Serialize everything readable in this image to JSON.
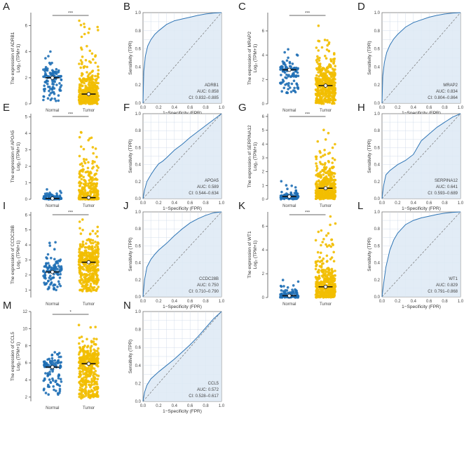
{
  "colors": {
    "normal": "#1f6fb5",
    "tumor": "#f2be00",
    "roc_line": "#2f75b5",
    "roc_fill": "#dde9f5",
    "grid": "#c9d6e6"
  },
  "axis_labels": {
    "group_normal": "Normal",
    "group_tumor": "Tumor",
    "roc_x": "1−Specificity (FPR)",
    "roc_y": "Sensitivity (TPR)"
  },
  "chart_data": [
    {
      "panel": "A",
      "type": "scatter",
      "title": "",
      "ylabel": "The expression of ADRB1",
      "ylabel_sub": "Log₂ (TPM+1)",
      "categories": [
        "Normal",
        "Tumor"
      ],
      "ylim": [
        0,
        7
      ],
      "yticks": [
        0,
        2,
        4,
        6
      ],
      "significance": "***",
      "medians": [
        2.0,
        0.75
      ],
      "ranges": [
        [
          0.2,
          4.5
        ],
        [
          0.0,
          6.9
        ]
      ],
      "n": [
        110,
        420
      ]
    },
    {
      "panel": "B",
      "type": "line",
      "title": "",
      "gene": "ADRB1",
      "auc": "AUC: 0.858",
      "ci": "CI: 0.832–0.885",
      "xlabel": "1−Specificity (FPR)",
      "ylabel": "Sensitivity (TPR)",
      "xlim": [
        0,
        1
      ],
      "ylim": [
        0,
        1
      ],
      "ticks": [
        0,
        0.2,
        0.4,
        0.6,
        0.8,
        1.0
      ],
      "x": [
        0,
        0.01,
        0.03,
        0.06,
        0.1,
        0.15,
        0.2,
        0.3,
        0.4,
        0.5,
        0.6,
        0.7,
        0.8,
        0.9,
        1.0
      ],
      "y": [
        0,
        0.35,
        0.52,
        0.63,
        0.7,
        0.76,
        0.8,
        0.87,
        0.91,
        0.93,
        0.95,
        0.97,
        0.985,
        0.995,
        1.0
      ]
    },
    {
      "panel": "C",
      "type": "scatter",
      "title": "",
      "ylabel": "The expression of MRAP2",
      "ylabel_sub": "Log₂ (TPM+1)",
      "categories": [
        "Normal",
        "Tumor"
      ],
      "ylim": [
        0,
        7.5
      ],
      "yticks": [
        0,
        2,
        4,
        6
      ],
      "significance": "***",
      "medians": [
        2.8,
        1.5
      ],
      "ranges": [
        [
          0.9,
          4.6
        ],
        [
          0.0,
          7.2
        ]
      ],
      "n": [
        110,
        420
      ]
    },
    {
      "panel": "D",
      "type": "line",
      "title": "",
      "gene": "MRAP2",
      "auc": "AUC: 0.834",
      "ci": "CI: 0.804–0.864",
      "xlabel": "1−Specificity (FPR)",
      "ylabel": "Sensitivity (TPR)",
      "xlim": [
        0,
        1
      ],
      "ylim": [
        0,
        1
      ],
      "ticks": [
        0,
        0.2,
        0.4,
        0.6,
        0.8,
        1.0
      ],
      "x": [
        0,
        0.01,
        0.03,
        0.06,
        0.1,
        0.15,
        0.2,
        0.3,
        0.4,
        0.5,
        0.6,
        0.7,
        0.8,
        0.9,
        1.0
      ],
      "y": [
        0,
        0.3,
        0.45,
        0.56,
        0.64,
        0.71,
        0.76,
        0.84,
        0.89,
        0.92,
        0.95,
        0.97,
        0.985,
        0.995,
        1.0
      ]
    },
    {
      "panel": "E",
      "type": "scatter",
      "title": "",
      "ylabel": "The expression of APOA5",
      "ylabel_sub": "Log₂ (TPM+1)",
      "categories": [
        "Normal",
        "Tumor"
      ],
      "ylim": [
        0,
        5.2
      ],
      "yticks": [
        0,
        1,
        2,
        3,
        4,
        5
      ],
      "significance": "***",
      "medians": [
        0.05,
        0.1
      ],
      "ranges": [
        [
          0.0,
          0.7
        ],
        [
          0.0,
          5.0
        ]
      ],
      "n": [
        110,
        420
      ]
    },
    {
      "panel": "F",
      "type": "line",
      "title": "",
      "gene": "APOA5",
      "auc": "AUC: 0.589",
      "ci": "CI: 0.544–0.634",
      "xlabel": "1−Specificity (FPR)",
      "ylabel": "Sensitivity (TPR)",
      "xlim": [
        0,
        1
      ],
      "ylim": [
        0,
        1
      ],
      "ticks": [
        0,
        0.2,
        0.4,
        0.6,
        0.8,
        1.0
      ],
      "x": [
        0,
        0.02,
        0.05,
        0.1,
        0.15,
        0.2,
        0.25,
        0.3,
        0.4,
        0.5,
        0.6,
        0.7,
        0.8,
        0.9,
        1.0
      ],
      "y": [
        0,
        0.1,
        0.2,
        0.28,
        0.35,
        0.41,
        0.44,
        0.48,
        0.57,
        0.64,
        0.72,
        0.79,
        0.86,
        0.93,
        1.0
      ]
    },
    {
      "panel": "G",
      "type": "scatter",
      "title": "",
      "ylabel": "The expression of SERPINA12",
      "ylabel_sub": "Log₂ (TPM+1)",
      "categories": [
        "Normal",
        "Tumor"
      ],
      "ylim": [
        0,
        6.2
      ],
      "yticks": [
        0,
        1,
        2,
        3,
        4,
        5,
        6
      ],
      "significance": "***",
      "medians": [
        0.2,
        0.8
      ],
      "ranges": [
        [
          0.0,
          1.4
        ],
        [
          0.0,
          5.8
        ]
      ],
      "n": [
        110,
        420
      ]
    },
    {
      "panel": "H",
      "type": "line",
      "title": "",
      "gene": "SERPINA12",
      "auc": "AUC: 0.641",
      "ci": "CI: 0.593–0.689",
      "xlabel": "1−Specificity (FPR)",
      "ylabel": "Sensitivity (TPR)",
      "xlim": [
        0,
        1
      ],
      "ylim": [
        0,
        1
      ],
      "ticks": [
        0,
        0.2,
        0.4,
        0.6,
        0.8,
        1.0
      ],
      "x": [
        0,
        0.02,
        0.05,
        0.1,
        0.2,
        0.3,
        0.4,
        0.45,
        0.5,
        0.6,
        0.7,
        0.8,
        0.9,
        1.0
      ],
      "y": [
        0,
        0.15,
        0.28,
        0.33,
        0.4,
        0.45,
        0.52,
        0.6,
        0.68,
        0.76,
        0.84,
        0.9,
        0.96,
        1.0
      ]
    },
    {
      "panel": "I",
      "type": "scatter",
      "title": "",
      "ylabel": "The expression of CCDC28B",
      "ylabel_sub": "Log₂ (TPM+1)",
      "categories": [
        "Normal",
        "Tumor"
      ],
      "ylim": [
        0.5,
        6.2
      ],
      "yticks": [
        1,
        2,
        3,
        4,
        5,
        6
      ],
      "significance": "***",
      "medians": [
        2.2,
        2.85
      ],
      "ranges": [
        [
          1.0,
          5.0
        ],
        [
          0.9,
          6.0
        ]
      ],
      "n": [
        110,
        420
      ]
    },
    {
      "panel": "J",
      "type": "line",
      "title": "",
      "gene": "CCDC28B",
      "auc": "AUC: 0.750",
      "ci": "CI: 0.710–0.790",
      "xlabel": "1−Specificity (FPR)",
      "ylabel": "Sensitivity (TPR)",
      "xlim": [
        0,
        1
      ],
      "ylim": [
        0,
        1
      ],
      "ticks": [
        0,
        0.2,
        0.4,
        0.6,
        0.8,
        1.0
      ],
      "x": [
        0,
        0.02,
        0.05,
        0.1,
        0.15,
        0.2,
        0.3,
        0.4,
        0.5,
        0.6,
        0.7,
        0.8,
        0.9,
        1.0
      ],
      "y": [
        0,
        0.2,
        0.35,
        0.44,
        0.5,
        0.55,
        0.63,
        0.72,
        0.8,
        0.87,
        0.92,
        0.96,
        0.99,
        1.0
      ]
    },
    {
      "panel": "K",
      "type": "scatter",
      "title": "",
      "ylabel": "The expression of WT1",
      "ylabel_sub": "Log₂ (TPM+1)",
      "categories": [
        "Normal",
        "Tumor"
      ],
      "ylim": [
        0,
        7.2
      ],
      "yticks": [
        0,
        2,
        4,
        6
      ],
      "significance": "***",
      "medians": [
        0.15,
        0.9
      ],
      "ranges": [
        [
          0.0,
          1.6
        ],
        [
          0.0,
          7.0
        ]
      ],
      "n": [
        110,
        420
      ]
    },
    {
      "panel": "L",
      "type": "line",
      "title": "",
      "gene": "WT1",
      "auc": "AUC: 0.829",
      "ci": "CI: 0.791–0.868",
      "xlabel": "1−Specificity (FPR)",
      "ylabel": "Sensitivity (TPR)",
      "xlim": [
        0,
        1
      ],
      "ylim": [
        0,
        1
      ],
      "ticks": [
        0,
        0.2,
        0.4,
        0.6,
        0.8,
        1.0
      ],
      "x": [
        0,
        0.02,
        0.05,
        0.1,
        0.15,
        0.2,
        0.25,
        0.3,
        0.4,
        0.5,
        0.6,
        0.7,
        0.8,
        0.9,
        1.0
      ],
      "y": [
        0,
        0.15,
        0.35,
        0.55,
        0.67,
        0.75,
        0.8,
        0.85,
        0.9,
        0.93,
        0.95,
        0.97,
        0.985,
        0.995,
        1.0
      ]
    },
    {
      "panel": "M",
      "type": "scatter",
      "title": "",
      "ylabel": "The expression of CCL5",
      "ylabel_sub": "Log₂ (TPM+1)",
      "categories": [
        "Normal",
        "Tumor"
      ],
      "ylim": [
        1.5,
        12
      ],
      "yticks": [
        2,
        4,
        6,
        8,
        10,
        12
      ],
      "significance": "*",
      "medians": [
        5.5,
        5.9
      ],
      "ranges": [
        [
          2.2,
          7.8
        ],
        [
          1.8,
          11.0
        ]
      ],
      "n": [
        110,
        420
      ]
    },
    {
      "panel": "N",
      "type": "line",
      "title": "",
      "gene": "CCL5",
      "auc": "AUC: 0.572",
      "ci": "CI: 0.528–0.617",
      "xlabel": "1−Specificity (FPR)",
      "ylabel": "Sensitivity (TPR)",
      "xlim": [
        0,
        1
      ],
      "ylim": [
        0,
        1
      ],
      "ticks": [
        0,
        0.2,
        0.4,
        0.6,
        0.8,
        1.0
      ],
      "x": [
        0,
        0.02,
        0.05,
        0.1,
        0.2,
        0.3,
        0.4,
        0.5,
        0.6,
        0.7,
        0.8,
        0.9,
        1.0
      ],
      "y": [
        0,
        0.1,
        0.18,
        0.25,
        0.33,
        0.4,
        0.47,
        0.55,
        0.63,
        0.72,
        0.82,
        0.92,
        1.0
      ]
    }
  ]
}
